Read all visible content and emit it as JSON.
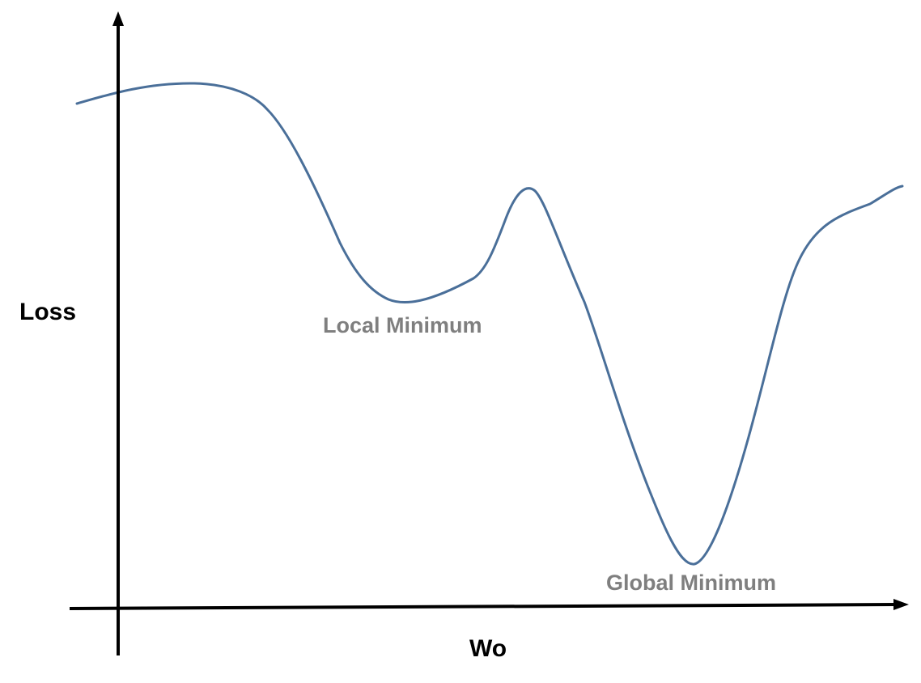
{
  "diagram": {
    "y_axis_label": "Loss",
    "x_axis_label": "Wo",
    "annotations": {
      "local_minimum": "Local Minimum",
      "global_minimum": "Global Minimum"
    }
  },
  "colors": {
    "curve": "#4a6f99",
    "axis": "#000000",
    "axis_label": "#000000",
    "annotation": "#7f7f7f"
  }
}
